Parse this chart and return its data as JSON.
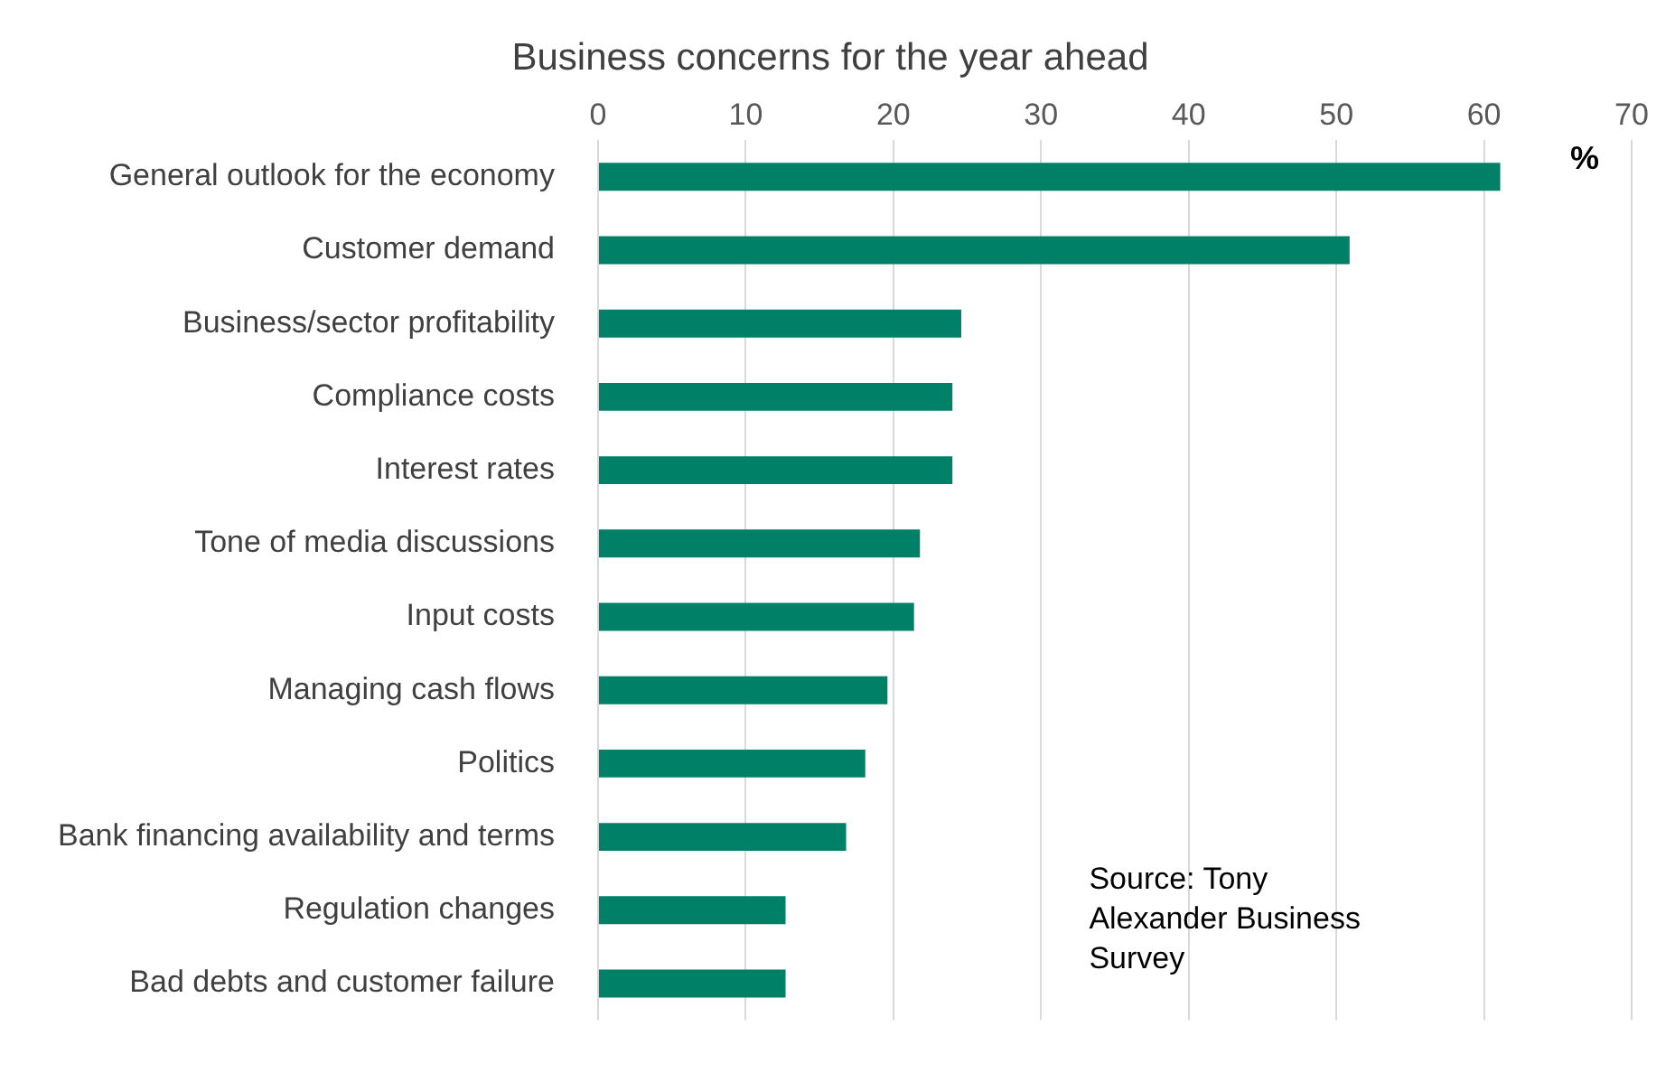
{
  "chart_data": {
    "type": "bar",
    "orientation": "horizontal",
    "title": "Business concerns for the year ahead",
    "xlabel": "%",
    "categories": [
      "General outlook for the economy",
      "Customer demand",
      "Business/sector profitability",
      "Compliance costs",
      "Interest rates",
      "Tone of media discussions",
      "Input costs",
      "Managing cash flows",
      "Politics",
      "Bank financing availability and terms",
      "Regulation changes",
      "Bad debts and customer failure"
    ],
    "values": [
      61.1,
      50.9,
      24.6,
      24.0,
      24.0,
      21.8,
      21.4,
      19.6,
      18.1,
      16.8,
      12.7,
      12.7
    ],
    "color": "#008066",
    "xlim": [
      0,
      70
    ],
    "xticks": [
      0,
      10,
      20,
      30,
      40,
      50,
      60,
      70
    ],
    "grid": "x",
    "annotations": [
      "Source: Tony Alexander Business Survey"
    ]
  }
}
